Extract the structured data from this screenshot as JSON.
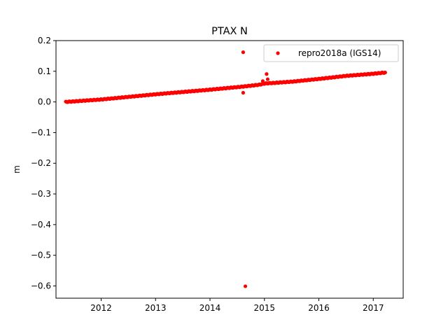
{
  "chart_data": {
    "type": "scatter",
    "title": "PTAX N",
    "xlabel": "",
    "ylabel": "m",
    "xlim": [
      2011.17,
      2017.55
    ],
    "ylim": [
      -0.64,
      0.2
    ],
    "x_ticks": [
      2012,
      2013,
      2014,
      2015,
      2016,
      2017
    ],
    "x_tick_labels": [
      "2012",
      "2013",
      "2014",
      "2015",
      "2016",
      "2017"
    ],
    "y_ticks": [
      0.2,
      0.1,
      0.0,
      -0.1,
      -0.2,
      -0.3,
      -0.4,
      -0.5,
      -0.6
    ],
    "y_tick_labels": [
      "0.2",
      "0.1",
      "0.0",
      "−0.1",
      "−0.2",
      "−0.3",
      "−0.4",
      "−0.5",
      "−0.6"
    ],
    "grid": false,
    "legend": {
      "placement": "top-right"
    },
    "series": [
      {
        "name": "repro2018a (IGS14)",
        "color": "#ff0000",
        "marker": "circle",
        "trend": [
          {
            "x": 2011.35,
            "y": 0.0
          },
          {
            "x": 2012.0,
            "y": 0.008
          },
          {
            "x": 2013.0,
            "y": 0.025
          },
          {
            "x": 2014.0,
            "y": 0.04
          },
          {
            "x": 2014.6,
            "y": 0.05
          },
          {
            "x": 2014.9,
            "y": 0.056
          },
          {
            "x": 2015.0,
            "y": 0.06
          },
          {
            "x": 2015.5,
            "y": 0.066
          },
          {
            "x": 2016.0,
            "y": 0.075
          },
          {
            "x": 2016.5,
            "y": 0.085
          },
          {
            "x": 2017.0,
            "y": 0.092
          },
          {
            "x": 2017.22,
            "y": 0.096
          }
        ],
        "outliers": [
          {
            "x": 2014.61,
            "y": 0.162
          },
          {
            "x": 2014.61,
            "y": 0.03
          },
          {
            "x": 2014.65,
            "y": -0.601
          },
          {
            "x": 2014.97,
            "y": 0.068
          },
          {
            "x": 2015.04,
            "y": 0.091
          },
          {
            "x": 2015.06,
            "y": 0.074
          }
        ]
      }
    ]
  }
}
